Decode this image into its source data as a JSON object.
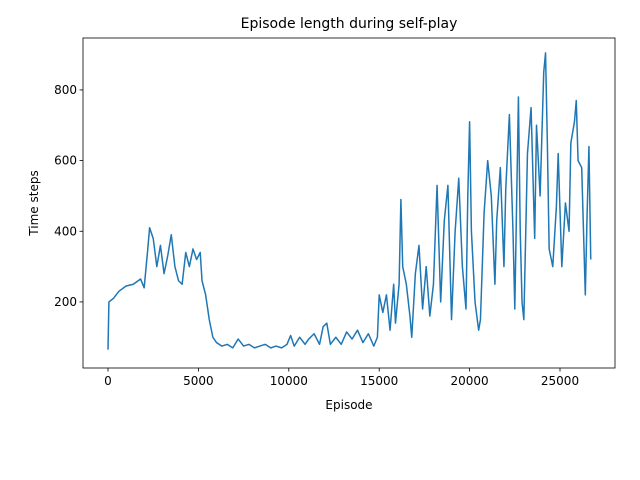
{
  "chart_data": {
    "type": "line",
    "title": "Episode length during self-play",
    "x_label": "Episode",
    "y_label": "Time steps",
    "x": [
      0,
      50,
      300,
      600,
      1000,
      1400,
      1800,
      2000,
      2200,
      2300,
      2500,
      2700,
      2900,
      3100,
      3300,
      3500,
      3700,
      3900,
      4100,
      4300,
      4500,
      4700,
      4900,
      5100,
      5200,
      5400,
      5600,
      5800,
      6000,
      6300,
      6600,
      6900,
      7200,
      7500,
      7800,
      8100,
      8400,
      8700,
      9000,
      9300,
      9600,
      9900,
      10100,
      10300,
      10600,
      10900,
      11100,
      11400,
      11700,
      11900,
      12100,
      12300,
      12600,
      12900,
      13200,
      13500,
      13800,
      14100,
      14400,
      14700,
      14900,
      15000,
      15200,
      15400,
      15600,
      15800,
      15900,
      16100,
      16200,
      16300,
      16500,
      16700,
      16800,
      17000,
      17200,
      17400,
      17600,
      17800,
      18000,
      18200,
      18400,
      18600,
      18800,
      19000,
      19200,
      19400,
      19600,
      19800,
      19900,
      20000,
      20100,
      20300,
      20500,
      20600,
      20800,
      21000,
      21200,
      21400,
      21500,
      21700,
      21900,
      22000,
      22200,
      22400,
      22500,
      22700,
      22800,
      22900,
      23000,
      23200,
      23400,
      23600,
      23700,
      23900,
      24100,
      24200,
      24300,
      24400,
      24600,
      24800,
      24900,
      25100,
      25300,
      25500,
      25600,
      25800,
      25900,
      26000,
      26200,
      26400,
      26500,
      26600,
      26700
    ],
    "series": [
      {
        "name": "episode length",
        "color": "#1f77b4",
        "values": [
          65,
          200,
          210,
          230,
          245,
          250,
          265,
          240,
          350,
          410,
          380,
          300,
          360,
          280,
          330,
          390,
          300,
          260,
          250,
          340,
          300,
          350,
          320,
          340,
          260,
          220,
          150,
          100,
          85,
          75,
          80,
          70,
          95,
          75,
          80,
          70,
          75,
          80,
          70,
          75,
          70,
          80,
          105,
          75,
          100,
          80,
          95,
          110,
          80,
          130,
          140,
          80,
          100,
          80,
          115,
          95,
          120,
          85,
          110,
          75,
          100,
          220,
          170,
          220,
          120,
          250,
          140,
          250,
          490,
          300,
          250,
          160,
          100,
          280,
          360,
          180,
          300,
          160,
          250,
          530,
          200,
          430,
          530,
          150,
          400,
          550,
          300,
          180,
          500,
          710,
          400,
          200,
          120,
          150,
          450,
          600,
          500,
          250,
          430,
          580,
          300,
          520,
          730,
          400,
          180,
          780,
          400,
          200,
          150,
          620,
          750,
          380,
          700,
          500,
          850,
          905,
          650,
          350,
          300,
          470,
          620,
          300,
          480,
          400,
          650,
          710,
          770,
          600,
          580,
          220,
          450,
          640,
          320
        ]
      }
    ],
    "xlim": [
      -1383,
      28042
    ],
    "ylim": [
      13,
      947
    ],
    "xticks": [
      0,
      5000,
      10000,
      15000,
      20000,
      25000
    ],
    "yticks": [
      200,
      400,
      600,
      800
    ]
  }
}
